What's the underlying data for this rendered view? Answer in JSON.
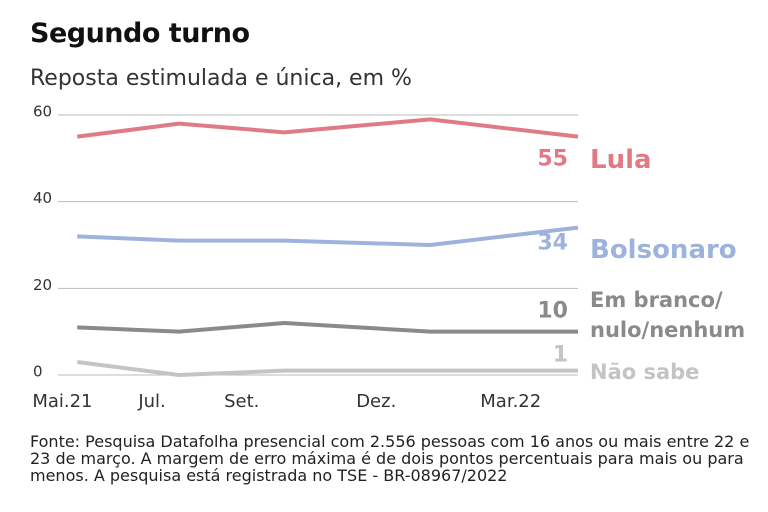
{
  "chart_data": {
    "type": "line",
    "title": "Segundo turno",
    "subtitle": "Reposta estimulada e única, em %",
    "note": "Fonte: Pesquisa Datafolha presencial com 2.556 pessoas com 16 anos ou mais entre 22 e 23 de março. A margem de erro máxima é de dois pontos percentuais para mais ou para menos. A pesquisa está registrada no TSE - BR-08967/2022",
    "x": [
      0.33,
      2.6,
      4.95,
      8.2,
      11.5
    ],
    "xlim": [
      -0.5,
      11.5
    ],
    "xticks": [
      {
        "value": 0,
        "label": "Mai.21"
      },
      {
        "value": 2,
        "label": "Jul."
      },
      {
        "value": 4,
        "label": "Set."
      },
      {
        "value": 7,
        "label": "Dez."
      },
      {
        "value": 10,
        "label": "Mar.22"
      }
    ],
    "ylim": [
      0,
      60
    ],
    "yticks": [
      0,
      20,
      40,
      60
    ],
    "grid": true,
    "series": [
      {
        "name": "Lula",
        "color": "#e07b86",
        "values": [
          55,
          58,
          56,
          59,
          55
        ]
      },
      {
        "name": "Bolsonaro",
        "color": "#9db3dc",
        "values": [
          32,
          31,
          31,
          30,
          34
        ]
      },
      {
        "name": "Em branco/ nulo/nenhum",
        "color": "#8a8a8a",
        "values": [
          11,
          10,
          12,
          10,
          10
        ]
      },
      {
        "name": "Não sabe",
        "color": "#c4c4c4",
        "values": [
          3,
          0,
          1,
          1,
          1
        ]
      }
    ]
  }
}
